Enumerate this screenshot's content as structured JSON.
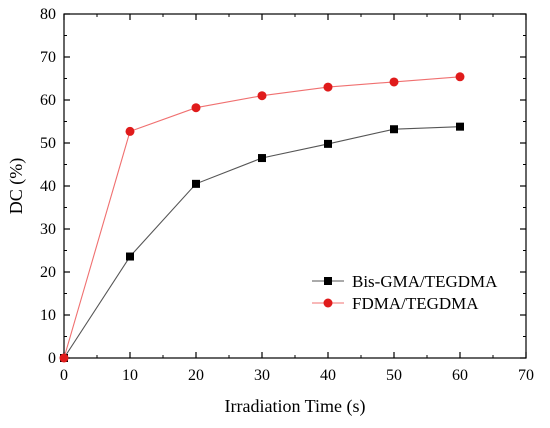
{
  "chart_data": {
    "type": "line",
    "title": "",
    "xlabel": "Irradiation Time (s)",
    "ylabel": "DC (%)",
    "xlim": [
      0,
      70
    ],
    "ylim": [
      0,
      80
    ],
    "x_ticks": [
      0,
      10,
      20,
      30,
      40,
      50,
      60,
      70
    ],
    "y_ticks": [
      0,
      10,
      20,
      30,
      40,
      50,
      60,
      70,
      80
    ],
    "grid": false,
    "legend_position": "bottom-right",
    "series": [
      {
        "name": "Bis-GMA/TEGDMA",
        "marker": "square",
        "color": "#000000",
        "line_color": "#555555",
        "x": [
          0,
          10,
          20,
          30,
          40,
          50,
          60
        ],
        "y": [
          0,
          23.6,
          40.5,
          46.5,
          49.8,
          53.2,
          53.8
        ]
      },
      {
        "name": "FDMA/TEGDMA",
        "marker": "circle",
        "color": "#e01b1b",
        "line_color": "#f07070",
        "x": [
          0,
          10,
          20,
          30,
          40,
          50,
          60
        ],
        "y": [
          0,
          52.7,
          58.2,
          61.0,
          63.0,
          64.2,
          65.4
        ]
      }
    ]
  }
}
